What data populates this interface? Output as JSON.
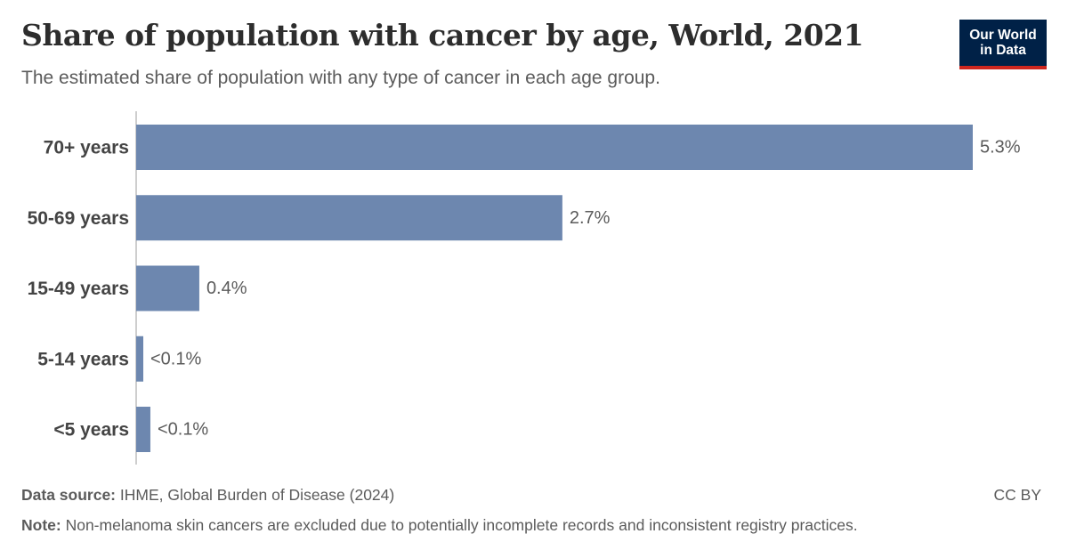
{
  "header": {
    "title": "Share of population with cancer by age, World, 2021",
    "subtitle": "The estimated share of population with any type of cancer in each age group."
  },
  "logo": {
    "line1": "Our World",
    "line2": "in Data"
  },
  "chart_data": {
    "type": "bar",
    "orientation": "horizontal",
    "categories": [
      "70+ years",
      "50-69 years",
      "15-49 years",
      "5-14 years",
      "<5 years"
    ],
    "values": [
      5.3,
      2.7,
      0.4,
      0.04,
      0.09
    ],
    "value_labels": [
      "5.3%",
      "2.7%",
      "0.4%",
      "<0.1%",
      "<0.1%"
    ],
    "unit": "%",
    "xlim": [
      0,
      5.3
    ],
    "grid": false,
    "bar_color": "#6d87af"
  },
  "footer": {
    "source_label": "Data source:",
    "source_text": " IHME, Global Burden of Disease (2024)",
    "note_label": "Note:",
    "note_text": " Non-melanoma skin cancers are excluded due to potentially incomplete records and inconsistent registry practices.",
    "license": "CC BY"
  },
  "colors": {
    "title": "#2d2d2d",
    "text": "#5b5b5b",
    "logo_bg": "#002147",
    "logo_accent": "#ce261e"
  }
}
